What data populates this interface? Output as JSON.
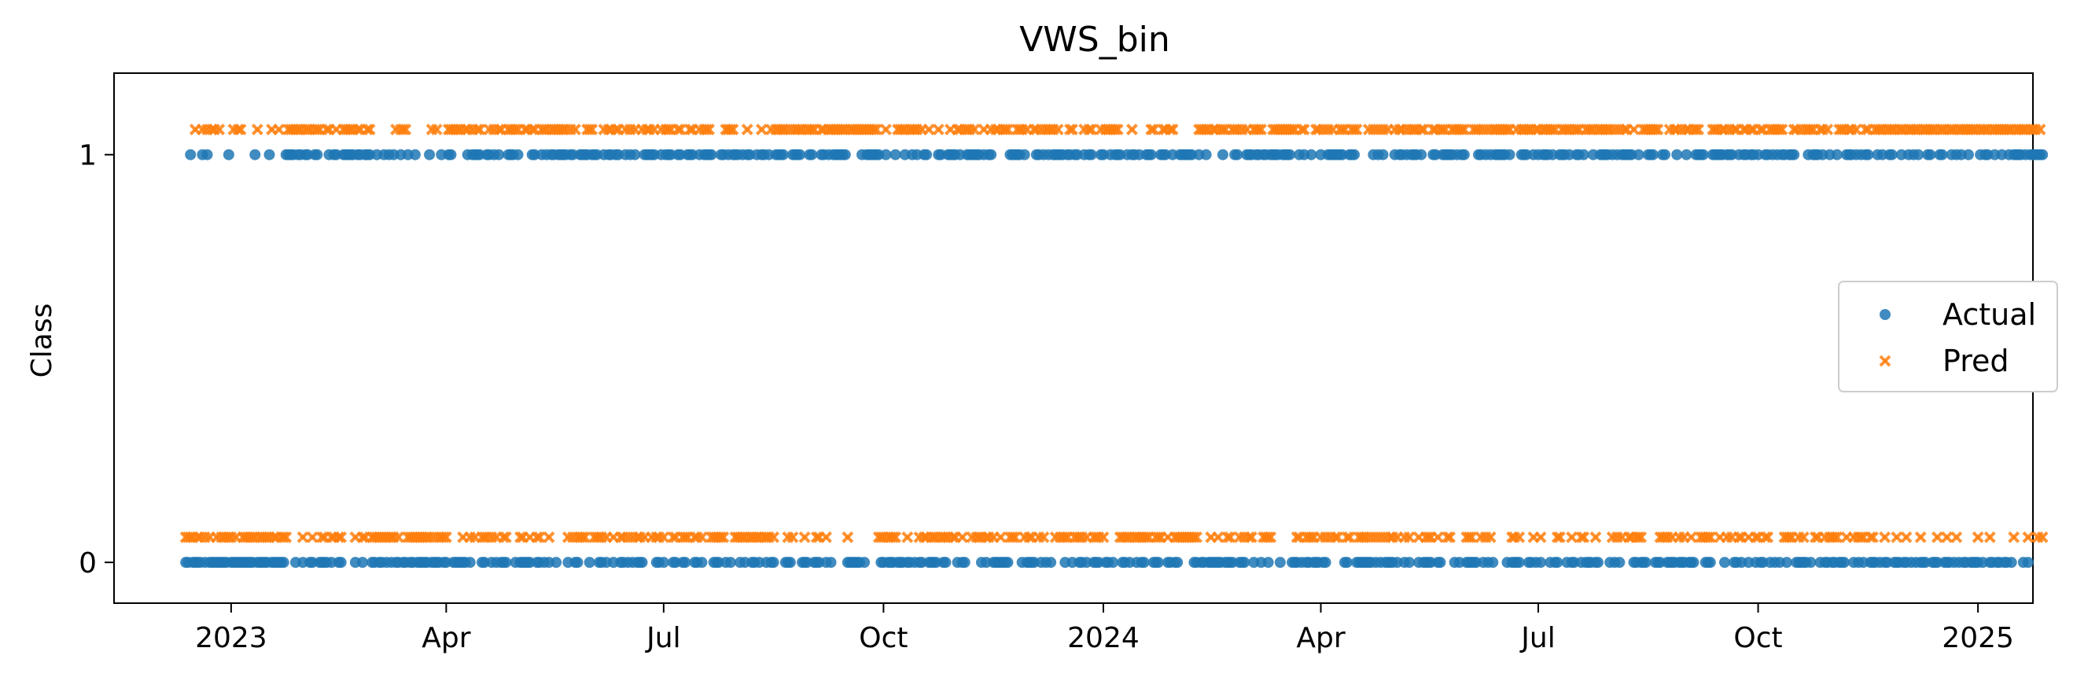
{
  "chart_data": {
    "type": "scatter",
    "title": "VWS_bin",
    "xlabel": "",
    "ylabel": "Class",
    "x_ticks": [
      "2023-01-01",
      "2023-04-01",
      "2023-07-01",
      "2023-10-01",
      "2024-01-01",
      "2024-04-01",
      "2024-07-01",
      "2024-10-01",
      "2025-01-01"
    ],
    "x_tick_labels": [
      "2023",
      "Apr",
      "Jul",
      "Oct",
      "2024",
      "Apr",
      "Jul",
      "Oct",
      "2025"
    ],
    "xlim": [
      "2022-11-13",
      "2025-01-24"
    ],
    "y_ticks": [
      0,
      1
    ],
    "ylim": [
      -0.1,
      1.2
    ],
    "grid": false,
    "legend_position": "right",
    "x_start": "2022-12-13",
    "x_end": "2024-12-24",
    "series": [
      {
        "name": "Actual",
        "marker": "circle",
        "color": "#1f77b4",
        "values": "0010000101000000001000000000010000010000001111011011001100001011001111101101110010010101001001001000001000010011000000101111001101010001110100000110010101101111011001111011100101101100101010001111100101110011001110010111100011010111010110010110100111100011110001100011010111111000000101111110010001000100101001100001100111101001111110101100000001111101000011010101111101101100101100011001011100101101001110001110010011111100100100000010000110001110110110111101111000101001000100111111100111000000010101000010110101110100001100111110101100000110101011111010000111001010111010011101001101000100111101010111110010001110001100001000100011110001111101110010110110100110101011011100000101110100100100011101010110001010011000100101010001100011000101010010000101100100100101111010111111"
      },
      {
        "name": "Pred",
        "marker": "x",
        "color": "#ff7f0e",
        "values": "0000100101011010000010110000001000001001000111111011101110011001001111101100110000000000101110000000000101000011111101101011000101011001111100110110011101111111010100001110000101101100101010010110100101110011000110010111000000111100000100000100010111110101111011110011011111111011111111111100010000111101111010010001000010011011101000100101101110001110100110101111010000110000101100010111111000001000000011000110110000000000111110110111001110101001111000011111111110011000011010101001110011100001010101010010110101110110001101110011111100011101010111111110010111110110111111001111011100111101111110101011001000111111100001011010110111000001110110101100110110011001111110000110101111001101000011101101000110011110111101110111110111111011101110111111110111101111111110111110111010"
      }
    ]
  }
}
